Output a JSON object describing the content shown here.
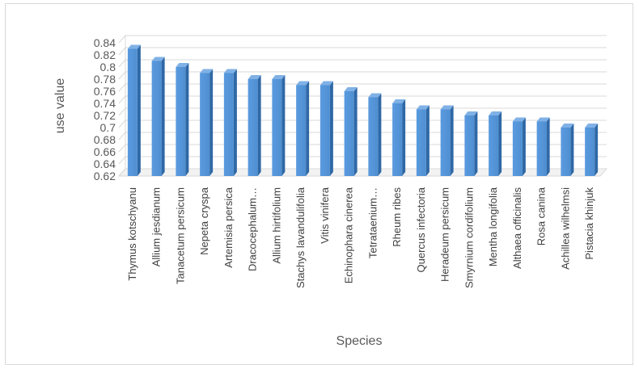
{
  "chart_data": {
    "type": "bar",
    "style": "3d-column",
    "xlabel": "Species",
    "ylabel": "use value",
    "ylim": [
      0.62,
      0.84
    ],
    "yticks": [
      "0.84",
      "0.82",
      "0.8",
      "0.78",
      "0.76",
      "0.74",
      "0.72",
      "0.7",
      "0.68",
      "0.66",
      "0.64",
      "0.62"
    ],
    "grid": true,
    "legend": "none",
    "bar_color": "#4f8fd0",
    "categories": [
      "Thymus kotschyanu",
      "Allium jesdianum",
      "Tanacetum persicum",
      "Nepeta cryspa",
      "Artemisia persica",
      "Dracocephalum…",
      "Allium hirtifolium",
      "Stachys lavandulifolia",
      "Vitis vinifera",
      "Echinophara cinerea",
      "Tetrataenium…",
      "Rheum ribes",
      "Quercus infectoria",
      "Heradeum persicum",
      "Smyrnium cordifolium",
      "Mentha longifolia",
      "Althaea officinalis",
      "Rosa canina",
      "Achillea wilhelmsi",
      "Pistacia khinjuk"
    ],
    "values": [
      0.83,
      0.81,
      0.8,
      0.79,
      0.79,
      0.78,
      0.78,
      0.77,
      0.77,
      0.76,
      0.75,
      0.74,
      0.73,
      0.73,
      0.72,
      0.72,
      0.71,
      0.71,
      0.7,
      0.7
    ]
  }
}
